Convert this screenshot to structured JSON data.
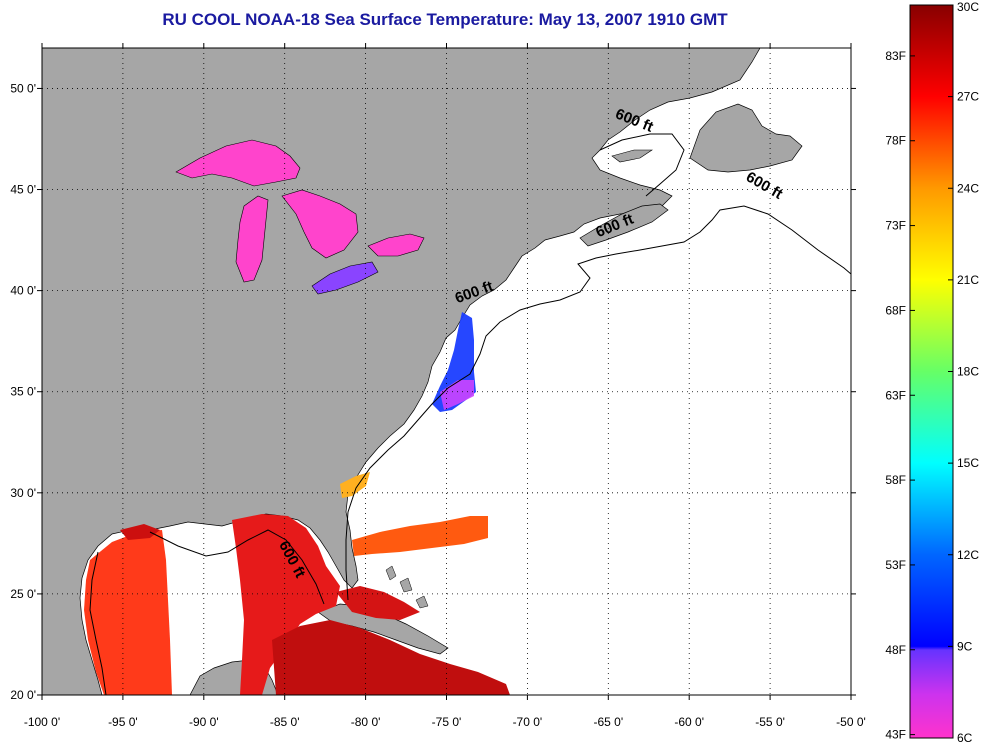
{
  "title": "RU COOL  NOAA-18  Sea Surface Temperature:  May 13, 2007 1910 GMT",
  "map": {
    "lon_range": [
      -100,
      -50
    ],
    "lat_range": [
      20,
      52
    ],
    "lon_ticks": [
      {
        "value": -100,
        "label": "-100 0'"
      },
      {
        "value": -95,
        "label": "-95 0'"
      },
      {
        "value": -90,
        "label": "-90 0'"
      },
      {
        "value": -85,
        "label": "-85 0'"
      },
      {
        "value": -80,
        "label": "-80 0'"
      },
      {
        "value": -75,
        "label": "-75 0'"
      },
      {
        "value": -70,
        "label": "-70 0'"
      },
      {
        "value": -65,
        "label": "-65 0'"
      },
      {
        "value": -60,
        "label": "-60 0'"
      },
      {
        "value": -55,
        "label": "-55 0'"
      },
      {
        "value": -50,
        "label": "-50 0'"
      }
    ],
    "lat_ticks": [
      {
        "value": 20,
        "label": "20 0'"
      },
      {
        "value": 25,
        "label": "25 0'"
      },
      {
        "value": 30,
        "label": "30 0'"
      },
      {
        "value": 35,
        "label": "35 0'"
      },
      {
        "value": 40,
        "label": "40 0'"
      },
      {
        "value": 45,
        "label": "45 0'"
      },
      {
        "value": 50,
        "label": "50 0'"
      }
    ],
    "contour_labels": [
      {
        "text": "600 ft",
        "lon": -63.5,
        "lat": 48.2,
        "angle": 22
      },
      {
        "text": "600 ft",
        "lon": -55.5,
        "lat": 45.0,
        "angle": 30
      },
      {
        "text": "600 ft",
        "lon": -64.5,
        "lat": 43.0,
        "angle": -22
      },
      {
        "text": "600 ft",
        "lon": -73.2,
        "lat": 39.7,
        "angle": -20
      },
      {
        "text": "600 ft",
        "lon": -84.8,
        "lat": 26.6,
        "angle": 62
      }
    ],
    "colors": {
      "land": "#a6a6a6",
      "ocean": "#ffffff",
      "grid": "#000000"
    }
  },
  "colorbar": {
    "celsius_ticks": [
      {
        "value": 6,
        "label": "6C"
      },
      {
        "value": 9,
        "label": "9C"
      },
      {
        "value": 12,
        "label": "12C"
      },
      {
        "value": 15,
        "label": "15C"
      },
      {
        "value": 18,
        "label": "18C"
      },
      {
        "value": 21,
        "label": "21C"
      },
      {
        "value": 24,
        "label": "24C"
      },
      {
        "value": 27,
        "label": "27C"
      },
      {
        "value": 30,
        "label": "30C"
      }
    ],
    "fahrenheit_ticks": [
      {
        "value": 43,
        "label": "43F"
      },
      {
        "value": 48,
        "label": "48F"
      },
      {
        "value": 53,
        "label": "53F"
      },
      {
        "value": 58,
        "label": "58F"
      },
      {
        "value": 63,
        "label": "63F"
      },
      {
        "value": 68,
        "label": "68F"
      },
      {
        "value": 73,
        "label": "73F"
      },
      {
        "value": 78,
        "label": "78F"
      },
      {
        "value": 83,
        "label": "83F"
      }
    ],
    "range_c": [
      6,
      30
    ],
    "colors": [
      "#ff33cc",
      "#9933ff",
      "#0000ff",
      "#0066ff",
      "#00ccff",
      "#00ffcc",
      "#66ff66",
      "#ccff00",
      "#ffff00",
      "#ffcc00",
      "#ff8000",
      "#ff3300",
      "#ff0000",
      "#990000"
    ]
  }
}
